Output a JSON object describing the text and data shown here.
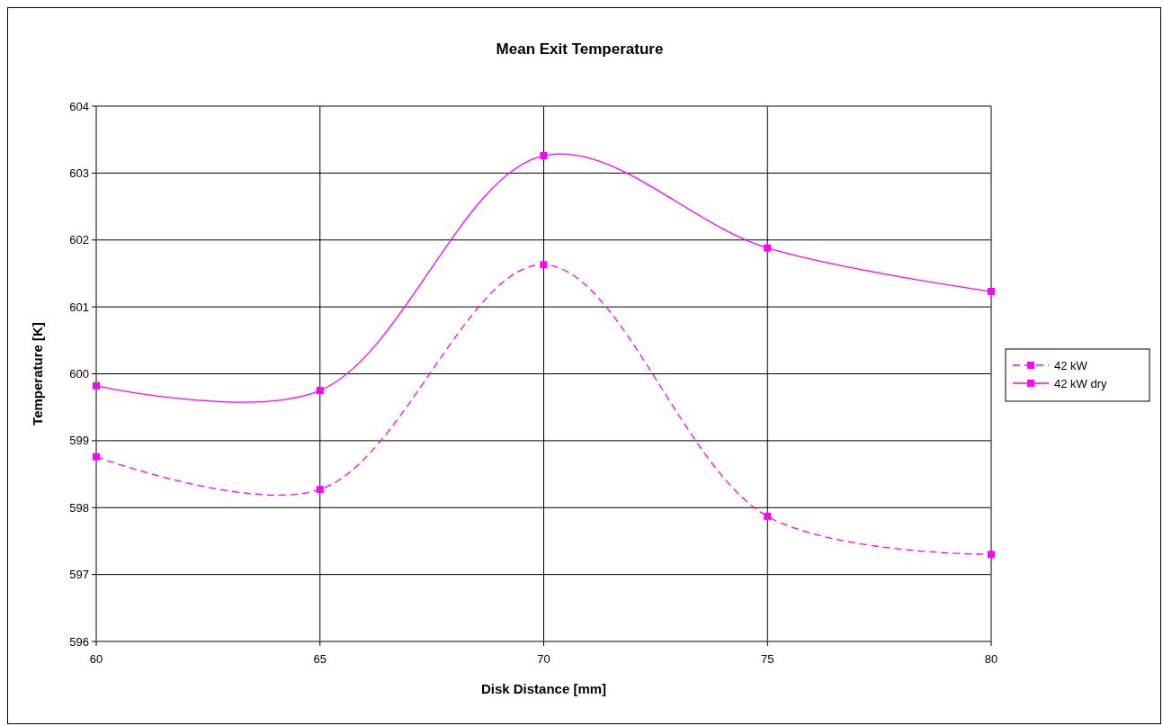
{
  "chart_data": {
    "type": "line",
    "title": "Mean Exit Temperature",
    "xlabel": "Disk Distance [mm]",
    "ylabel": "Temperature [K]",
    "x": [
      60,
      65,
      70,
      75,
      80
    ],
    "xlim": [
      60,
      80
    ],
    "xticks": [
      60,
      65,
      70,
      75,
      80
    ],
    "ylim": [
      596,
      604
    ],
    "yticks": [
      596,
      597,
      598,
      599,
      600,
      601,
      602,
      603,
      604
    ],
    "grid": true,
    "legend": "right",
    "marker": "square",
    "series": [
      {
        "name": "42 kW",
        "color": "#ff00ff",
        "line_style": "dashed",
        "values": [
          598.76,
          598.27,
          601.63,
          597.87,
          597.3
        ]
      },
      {
        "name": "42 kW dry",
        "color": "#ff00ff",
        "line_style": "solid",
        "values": [
          599.82,
          599.75,
          603.26,
          601.88,
          601.23
        ]
      }
    ]
  }
}
